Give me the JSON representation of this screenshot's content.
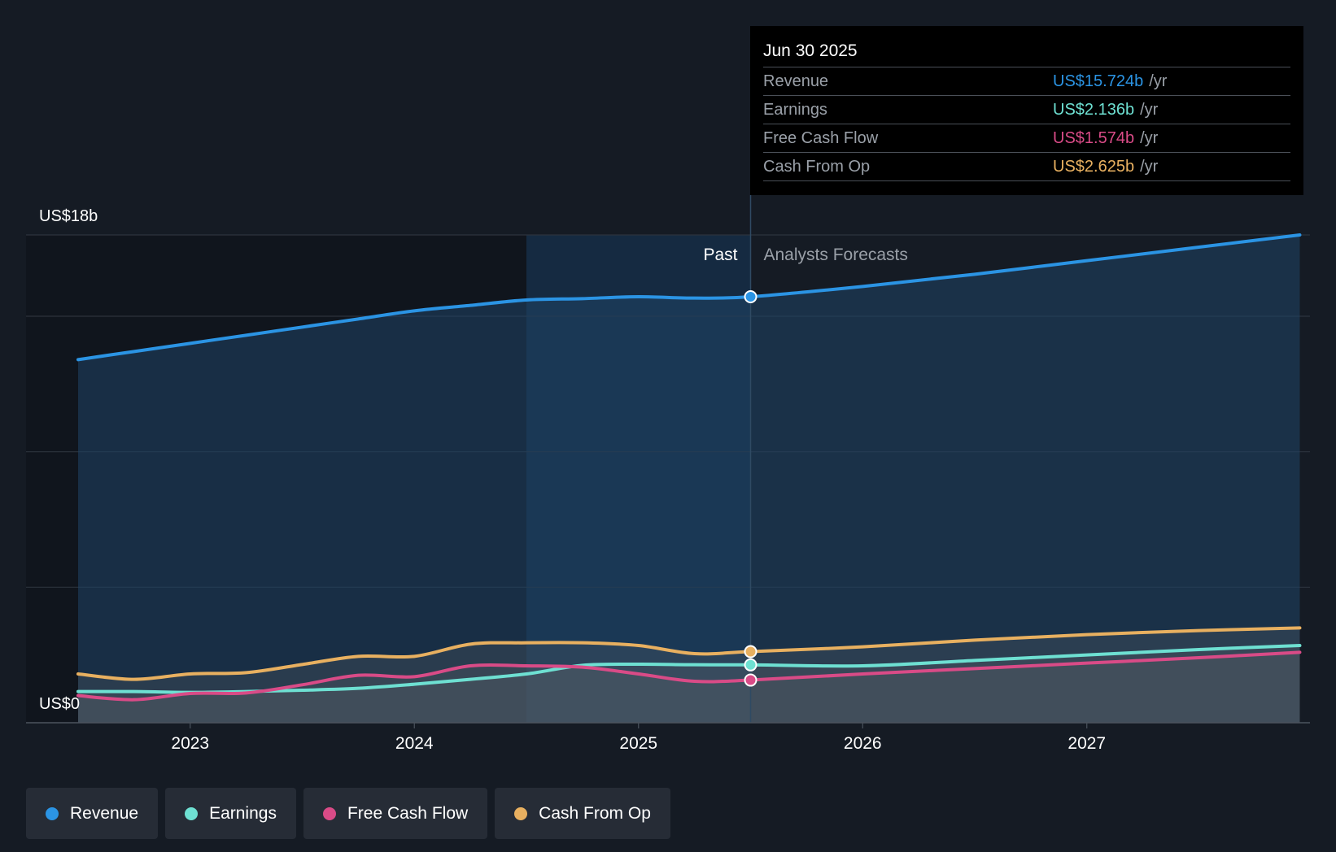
{
  "chart_data": {
    "type": "area",
    "x_unit": "year",
    "xlim": [
      2022.5,
      2027.95
    ],
    "ylim": [
      0,
      18
    ],
    "y_top_label": "US$18b",
    "y_bottom_label": "US$0",
    "x_ticks": [
      2023,
      2024,
      2025,
      2026,
      2027
    ],
    "x_tick_labels": [
      "2023",
      "2024",
      "2025",
      "2026",
      "2027"
    ],
    "past_label": "Past",
    "forecast_label": "Analysts Forecasts",
    "divider_x": 2025.5,
    "highlight_start_x": 2024.5,
    "series": [
      {
        "name": "Revenue",
        "color": "#2b94e4",
        "values": [
          [
            2022.5,
            13.4
          ],
          [
            2022.75,
            13.7
          ],
          [
            2023.0,
            14.0
          ],
          [
            2023.25,
            14.3
          ],
          [
            2023.5,
            14.6
          ],
          [
            2023.75,
            14.9
          ],
          [
            2024.0,
            15.2
          ],
          [
            2024.25,
            15.4
          ],
          [
            2024.5,
            15.6
          ],
          [
            2024.75,
            15.65
          ],
          [
            2025.0,
            15.72
          ],
          [
            2025.25,
            15.67
          ],
          [
            2025.5,
            15.72
          ]
        ],
        "forecast": [
          [
            2025.5,
            15.72
          ],
          [
            2026.0,
            16.1
          ],
          [
            2026.5,
            16.55
          ],
          [
            2027.0,
            17.05
          ],
          [
            2027.5,
            17.55
          ],
          [
            2027.95,
            18.0
          ]
        ]
      },
      {
        "name": "Earnings",
        "color": "#6ee0d2",
        "values": [
          [
            2022.5,
            1.15
          ],
          [
            2022.75,
            1.15
          ],
          [
            2023.0,
            1.12
          ],
          [
            2023.25,
            1.15
          ],
          [
            2023.5,
            1.2
          ],
          [
            2023.75,
            1.27
          ],
          [
            2024.0,
            1.42
          ],
          [
            2024.25,
            1.6
          ],
          [
            2024.5,
            1.8
          ],
          [
            2024.75,
            2.12
          ],
          [
            2025.0,
            2.16
          ],
          [
            2025.25,
            2.14
          ],
          [
            2025.5,
            2.136
          ]
        ],
        "forecast": [
          [
            2025.5,
            2.136
          ],
          [
            2026.0,
            2.1
          ],
          [
            2026.5,
            2.3
          ],
          [
            2027.0,
            2.5
          ],
          [
            2027.5,
            2.7
          ],
          [
            2027.95,
            2.85
          ]
        ]
      },
      {
        "name": "Free Cash Flow",
        "color": "#d94b87",
        "values": [
          [
            2022.5,
            1.0
          ],
          [
            2022.75,
            0.85
          ],
          [
            2023.0,
            1.08
          ],
          [
            2023.25,
            1.1
          ],
          [
            2023.5,
            1.4
          ],
          [
            2023.75,
            1.75
          ],
          [
            2024.0,
            1.7
          ],
          [
            2024.25,
            2.1
          ],
          [
            2024.5,
            2.1
          ],
          [
            2024.75,
            2.05
          ],
          [
            2025.0,
            1.8
          ],
          [
            2025.25,
            1.53
          ],
          [
            2025.5,
            1.574
          ]
        ],
        "forecast": [
          [
            2025.5,
            1.574
          ],
          [
            2026.0,
            1.8
          ],
          [
            2026.5,
            2.0
          ],
          [
            2027.0,
            2.2
          ],
          [
            2027.5,
            2.4
          ],
          [
            2027.95,
            2.6
          ]
        ]
      },
      {
        "name": "Cash From Op",
        "color": "#e8b060",
        "values": [
          [
            2022.5,
            1.8
          ],
          [
            2022.75,
            1.6
          ],
          [
            2023.0,
            1.8
          ],
          [
            2023.25,
            1.85
          ],
          [
            2023.5,
            2.15
          ],
          [
            2023.75,
            2.45
          ],
          [
            2024.0,
            2.45
          ],
          [
            2024.25,
            2.9
          ],
          [
            2024.5,
            2.95
          ],
          [
            2024.75,
            2.95
          ],
          [
            2025.0,
            2.85
          ],
          [
            2025.25,
            2.55
          ],
          [
            2025.5,
            2.625
          ]
        ],
        "forecast": [
          [
            2025.5,
            2.625
          ],
          [
            2026.0,
            2.8
          ],
          [
            2026.5,
            3.05
          ],
          [
            2027.0,
            3.25
          ],
          [
            2027.5,
            3.4
          ],
          [
            2027.95,
            3.5
          ]
        ]
      }
    ],
    "tooltip": {
      "date": "Jun 30 2025",
      "unit": "/yr",
      "rows": [
        {
          "label": "Revenue",
          "value": "US$15.724b",
          "color": "#2b94e4"
        },
        {
          "label": "Earnings",
          "value": "US$2.136b",
          "color": "#6ee0d2"
        },
        {
          "label": "Free Cash Flow",
          "value": "US$1.574b",
          "color": "#d94b87"
        },
        {
          "label": "Cash From Op",
          "value": "US$2.625b",
          "color": "#e8b060"
        }
      ]
    }
  },
  "legend": [
    {
      "label": "Revenue",
      "color": "#2b94e4"
    },
    {
      "label": "Earnings",
      "color": "#6ee0d2"
    },
    {
      "label": "Free Cash Flow",
      "color": "#d94b87"
    },
    {
      "label": "Cash From Op",
      "color": "#e8b060"
    }
  ]
}
